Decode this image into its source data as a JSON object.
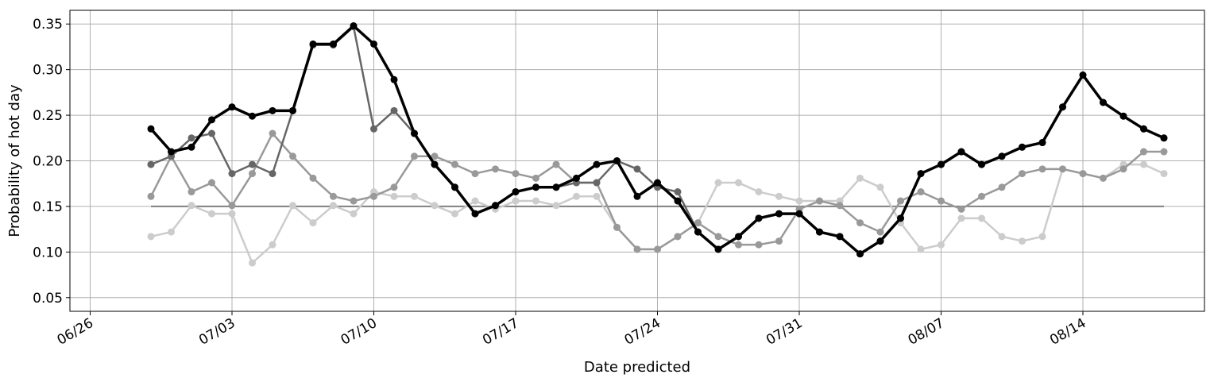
{
  "chart_data": {
    "type": "line",
    "xlabel": "Date predicted",
    "ylabel": "Probability of hot day",
    "xlim": [
      "2019-06-25",
      "2019-08-20"
    ],
    "ylim": [
      0.035,
      0.365
    ],
    "grid": true,
    "x_ticks": [
      {
        "date": "2019-06-26",
        "label": "06/26"
      },
      {
        "date": "2019-07-03",
        "label": "07/03"
      },
      {
        "date": "2019-07-10",
        "label": "07/10"
      },
      {
        "date": "2019-07-17",
        "label": "07/17"
      },
      {
        "date": "2019-07-24",
        "label": "07/24"
      },
      {
        "date": "2019-07-31",
        "label": "07/31"
      },
      {
        "date": "2019-08-07",
        "label": "08/07"
      },
      {
        "date": "2019-08-14",
        "label": "08/14"
      }
    ],
    "y_ticks": [
      {
        "value": 0.05,
        "label": "0.05"
      },
      {
        "value": 0.1,
        "label": "0.10"
      },
      {
        "value": 0.15,
        "label": "0.15"
      },
      {
        "value": 0.2,
        "label": "0.20"
      },
      {
        "value": 0.25,
        "label": "0.25"
      },
      {
        "value": 0.3,
        "label": "0.30"
      },
      {
        "value": 0.35,
        "label": "0.35"
      }
    ],
    "x": [
      "2019-06-29",
      "2019-06-30",
      "2019-07-01",
      "2019-07-02",
      "2019-07-03",
      "2019-07-04",
      "2019-07-05",
      "2019-07-06",
      "2019-07-07",
      "2019-07-08",
      "2019-07-09",
      "2019-07-10",
      "2019-07-11",
      "2019-07-12",
      "2019-07-13",
      "2019-07-14",
      "2019-07-15",
      "2019-07-16",
      "2019-07-17",
      "2019-07-18",
      "2019-07-19",
      "2019-07-20",
      "2019-07-21",
      "2019-07-22",
      "2019-07-23",
      "2019-07-24",
      "2019-07-25",
      "2019-07-26",
      "2019-07-27",
      "2019-07-28",
      "2019-07-29",
      "2019-07-30",
      "2019-07-31",
      "2019-08-01",
      "2019-08-02",
      "2019-08-03",
      "2019-08-04",
      "2019-08-05",
      "2019-08-06",
      "2019-08-07",
      "2019-08-08",
      "2019-08-09",
      "2019-08-10",
      "2019-08-11",
      "2019-08-12",
      "2019-08-13",
      "2019-08-14",
      "2019-08-15",
      "2019-08-16",
      "2019-08-17",
      "2019-08-18"
    ],
    "series": [
      {
        "color": "#cccccc",
        "values": [
          0.117,
          0.122,
          0.151,
          0.142,
          0.142,
          0.088,
          0.108,
          0.151,
          0.132,
          0.151,
          0.142,
          0.166,
          0.161,
          0.161,
          0.151,
          0.142,
          0.156,
          0.147,
          0.156,
          0.156,
          0.151,
          0.161,
          0.161,
          0.127,
          0.103,
          0.103,
          0.117,
          0.132,
          0.176,
          0.176,
          0.166,
          0.161,
          0.156,
          0.156,
          0.156,
          0.181,
          0.171,
          0.132,
          0.103,
          0.108,
          0.137,
          0.137,
          0.117,
          0.112,
          0.117,
          0.191,
          0.186,
          0.181,
          0.196,
          0.196,
          0.186
        ]
      },
      {
        "color": "#999999",
        "values": [
          0.161,
          0.205,
          0.166,
          0.176,
          0.151,
          0.186,
          0.23,
          0.205,
          0.181,
          0.161,
          0.156,
          0.161,
          0.171,
          0.205,
          0.205,
          0.196,
          0.186,
          0.191,
          0.186,
          0.181,
          0.196,
          0.176,
          0.176,
          0.127,
          0.103,
          0.103,
          0.117,
          0.132,
          0.117,
          0.108,
          0.108,
          0.112,
          0.147,
          0.156,
          0.151,
          0.132,
          0.122,
          0.156,
          0.166,
          0.156,
          0.147,
          0.161,
          0.171,
          0.186,
          0.191,
          0.191,
          0.186,
          0.181,
          0.191,
          0.21,
          0.21
        ]
      },
      {
        "color": "#666666",
        "values": [
          0.196,
          0.205,
          0.225,
          0.23,
          0.186,
          0.196,
          0.186,
          0.255,
          0.327,
          0.327,
          0.347,
          0.235,
          0.255,
          0.23,
          0.196,
          0.171,
          0.142,
          0.151,
          0.166,
          0.171,
          0.171,
          0.176,
          0.176,
          0.2,
          0.191,
          0.171,
          0.166,
          0.122,
          0.103,
          0.117,
          0.137,
          0.142,
          0.142,
          0.122,
          0.117,
          0.098,
          0.112,
          0.137,
          0.186,
          0.196,
          0.21,
          0.196,
          0.205,
          0.215,
          0.22,
          0.259,
          0.294,
          0.264,
          0.249,
          0.235,
          0.225
        ]
      },
      {
        "color": "#000000",
        "values": [
          0.235,
          0.21,
          0.215,
          0.245,
          0.259,
          0.249,
          0.255,
          0.255,
          0.328,
          0.328,
          0.348,
          0.328,
          0.289,
          0.23,
          0.196,
          0.171,
          0.142,
          0.151,
          0.166,
          0.171,
          0.171,
          0.181,
          0.196,
          0.2,
          0.161,
          0.176,
          0.156,
          0.122,
          0.103,
          0.117,
          0.137,
          0.142,
          0.142,
          0.122,
          0.117,
          0.098,
          0.112,
          0.137,
          0.186,
          0.196,
          0.21,
          0.196,
          0.205,
          0.215,
          0.22,
          0.259,
          0.294,
          0.264,
          0.249,
          0.235,
          0.225
        ]
      }
    ],
    "reference_line": {
      "value": 0.15,
      "from": "2019-06-29",
      "to": "2019-08-18",
      "color": "#808080"
    }
  }
}
